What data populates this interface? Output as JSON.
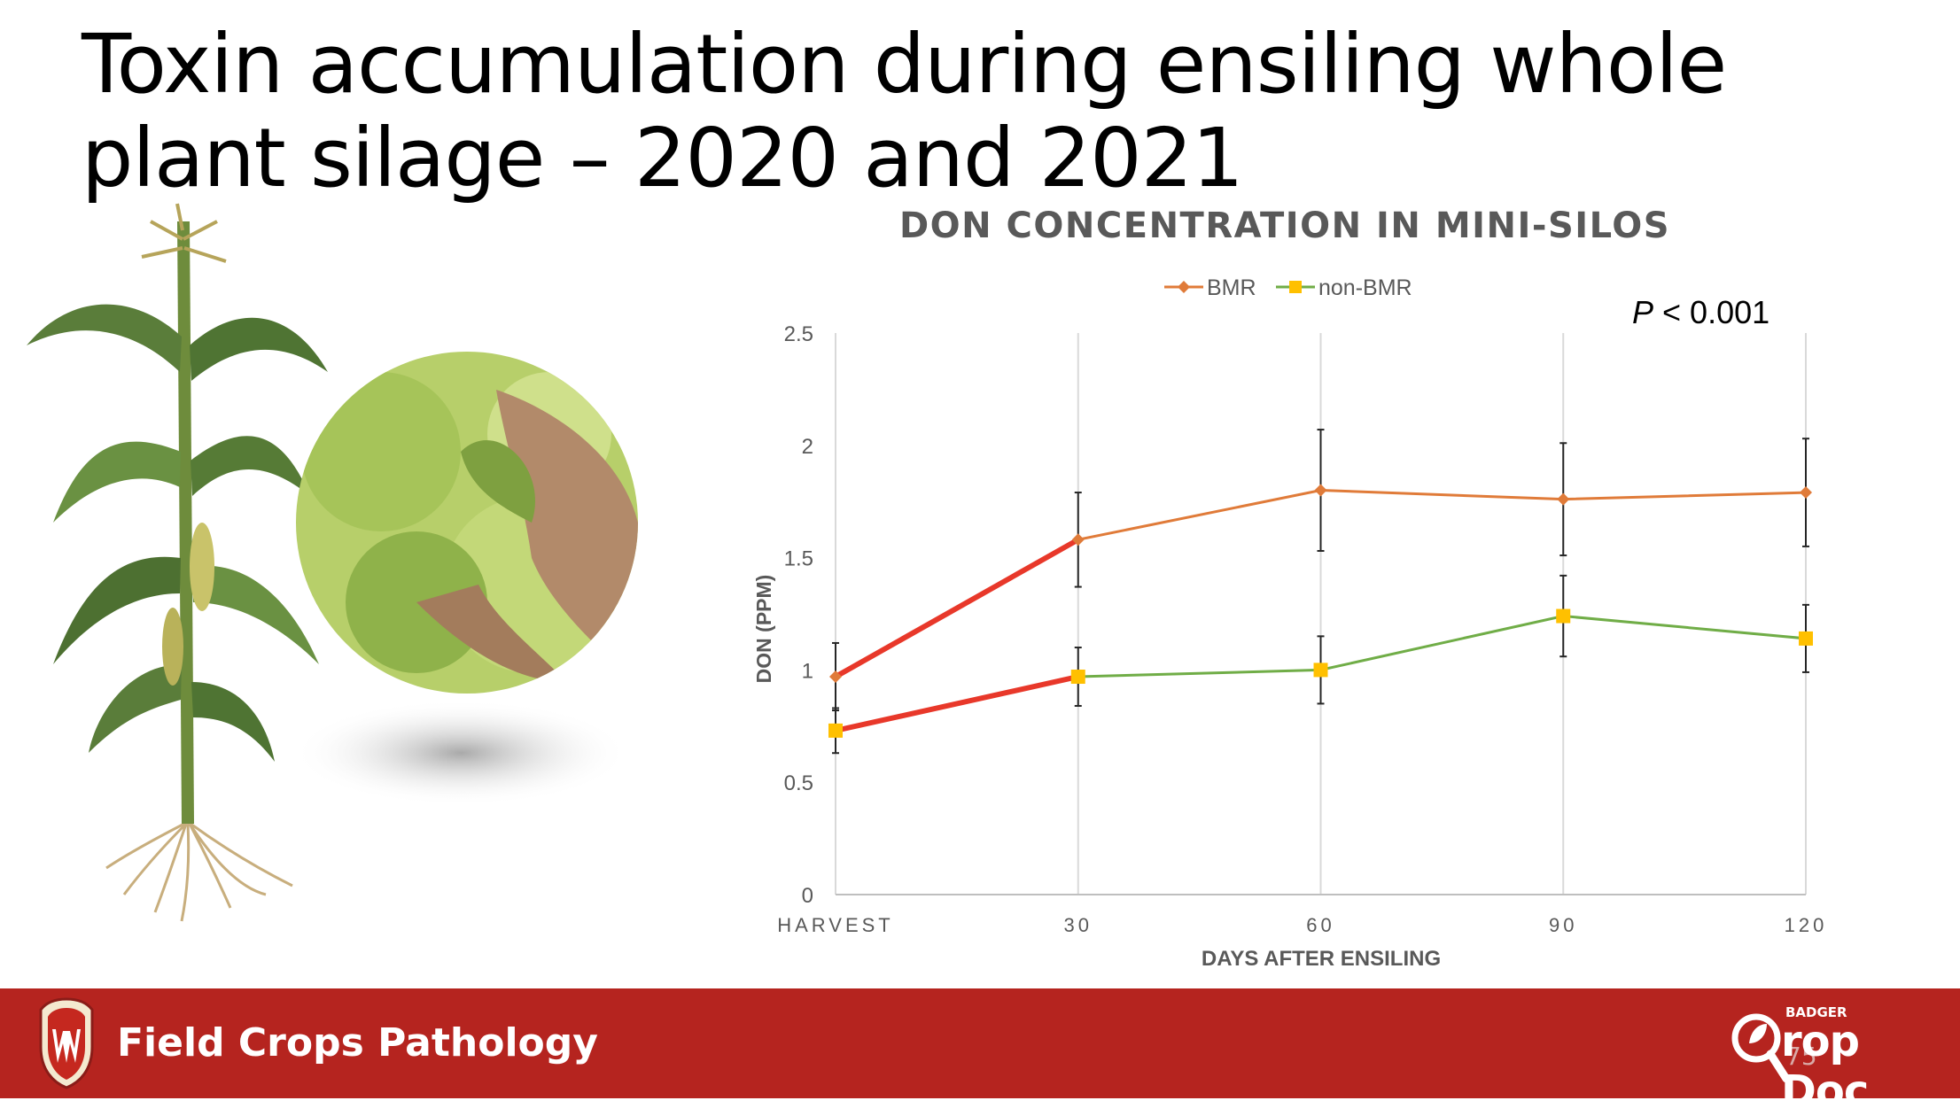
{
  "slide": {
    "title": "Toxin accumulation during ensiling whole plant silage – 2020 and 2021"
  },
  "footer": {
    "title": "Field Crops Pathology",
    "logo_badger": "BADGER",
    "logo_text": "rop Doc",
    "page_number": "75"
  },
  "annotation": {
    "p_label": "P",
    "p_value": " < 0.001"
  },
  "colors": {
    "bmr": "#e07b39",
    "non_bmr": "#70ad47",
    "non_bmr_marker": "#ffc000",
    "highlight": "#e8382a",
    "footer_bg": "#b5241f"
  },
  "chart_data": {
    "type": "line",
    "title": "DON CONCENTRATION IN MINI-SILOS",
    "xlabel": "DAYS AFTER ENSILING",
    "ylabel": "DON (PPM)",
    "categories": [
      "HARVEST",
      "30",
      "60",
      "90",
      "120"
    ],
    "ylim": [
      0,
      2.5
    ],
    "yticks": [
      "0",
      "0.5",
      "1",
      "1.5",
      "2",
      "2.5"
    ],
    "grid": "vertical",
    "legend_position": "top",
    "series": [
      {
        "name": "BMR",
        "values": [
          0.97,
          1.58,
          1.8,
          1.76,
          1.79
        ],
        "error": [
          0.15,
          0.21,
          0.27,
          0.25,
          0.24
        ],
        "marker": "diamond"
      },
      {
        "name": "non-BMR",
        "values": [
          0.73,
          0.97,
          1.0,
          1.24,
          1.14
        ],
        "error": [
          0.1,
          0.13,
          0.15,
          0.18,
          0.15
        ],
        "marker": "square"
      }
    ],
    "highlighted_segments": [
      {
        "series": "BMR",
        "from": "HARVEST",
        "to": "30"
      },
      {
        "series": "non-BMR",
        "from": "HARVEST",
        "to": "30"
      }
    ]
  }
}
